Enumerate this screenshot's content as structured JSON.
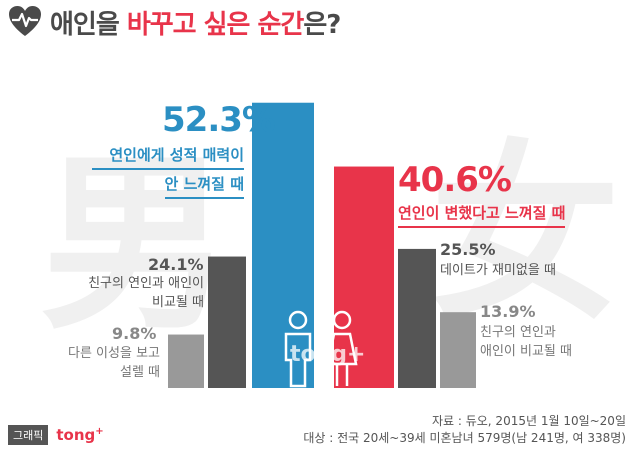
{
  "title": {
    "prefix": "애인을 ",
    "highlight": "바꾸고 싶은 순간",
    "suffix": "은?"
  },
  "background": {
    "male_glyph": "男",
    "female_glyph": "女"
  },
  "colors": {
    "male_top": "#2b8fc3",
    "female_top": "#e8344a",
    "dark": "#555555",
    "light": "#999999",
    "title_highlight": "#e8344a"
  },
  "chart_data": {
    "type": "bar",
    "title": "애인을 바꾸고 싶은 순간은?",
    "ylim": [
      0,
      55
    ],
    "groups": [
      {
        "gender": "male",
        "bars": [
          {
            "value": 9.8,
            "label": "9.8%",
            "lines": [
              "다른 이성을 보고",
              "설렐 때"
            ]
          },
          {
            "value": 24.1,
            "label": "24.1%",
            "lines": [
              "친구의 연인과 애인이",
              "비교될 때"
            ]
          },
          {
            "value": 52.3,
            "label": "52.3%",
            "lines": [
              "연인에게 성적 매력이",
              "안 느껴질 때"
            ]
          }
        ]
      },
      {
        "gender": "female",
        "bars": [
          {
            "value": 40.6,
            "label": "40.6%",
            "lines": [
              "연인이 변했다고 느껴질 때"
            ]
          },
          {
            "value": 25.5,
            "label": "25.5%",
            "lines": [
              "데이트가 재미없을 때"
            ]
          },
          {
            "value": 13.9,
            "label": "13.9%",
            "lines": [
              "친구의 연인과",
              "애인이 비교될 때"
            ]
          }
        ]
      }
    ]
  },
  "source": {
    "line1": "자료 : 듀오, 2015년 1월 10일~20일",
    "line2": "대상 : 전국 20세~39세 미혼남녀 579명(남 241명, 여 338명)"
  },
  "footer": {
    "badge": "그래픽",
    "brand": "tong",
    "brand_plus": "+"
  },
  "watermark": "tong+"
}
